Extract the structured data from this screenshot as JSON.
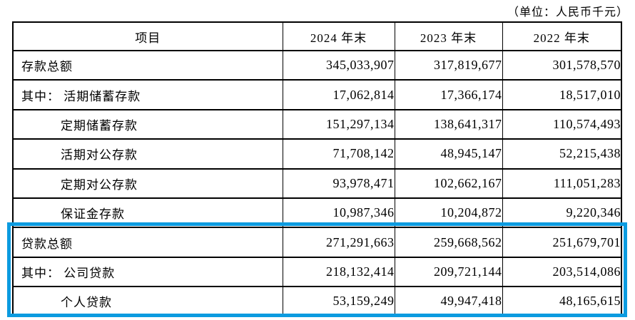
{
  "unit_note": "（单位：人民币千元）",
  "highlight": {
    "color": "#0C9BE0",
    "note": "blue annotation box around loan rows"
  },
  "table": {
    "columns": [
      "项目",
      "2024 年末",
      "2023 年末",
      "2022 年末"
    ],
    "rows": [
      {
        "label": "存款总额",
        "indent": 0,
        "highlighted": false,
        "values": [
          "345,033,907",
          "317,819,677",
          "301,578,570"
        ]
      },
      {
        "label": "其中： 活期储蓄存款",
        "indent": 0,
        "highlighted": false,
        "values": [
          "17,062,814",
          "17,366,174",
          "18,517,010"
        ]
      },
      {
        "label": "定期储蓄存款",
        "indent": 1,
        "highlighted": false,
        "values": [
          "151,297,134",
          "138,641,317",
          "110,574,493"
        ]
      },
      {
        "label": "活期对公存款",
        "indent": 1,
        "highlighted": false,
        "values": [
          "71,708,142",
          "48,945,147",
          "52,215,438"
        ]
      },
      {
        "label": "定期对公存款",
        "indent": 1,
        "highlighted": false,
        "values": [
          "93,978,471",
          "102,662,167",
          "111,051,283"
        ]
      },
      {
        "label": "保证金存款",
        "indent": 1,
        "highlighted": false,
        "values": [
          "10,987,346",
          "10,204,872",
          "9,220,346"
        ]
      },
      {
        "label": "贷款总额",
        "indent": 0,
        "highlighted": true,
        "values": [
          "271,291,663",
          "259,668,562",
          "251,679,701"
        ]
      },
      {
        "label": "其中： 公司贷款",
        "indent": 0,
        "highlighted": true,
        "values": [
          "218,132,414",
          "209,721,144",
          "203,514,086"
        ]
      },
      {
        "label": "个人贷款",
        "indent": 1,
        "highlighted": true,
        "values": [
          "53,159,249",
          "49,947,418",
          "48,165,615"
        ]
      }
    ]
  }
}
